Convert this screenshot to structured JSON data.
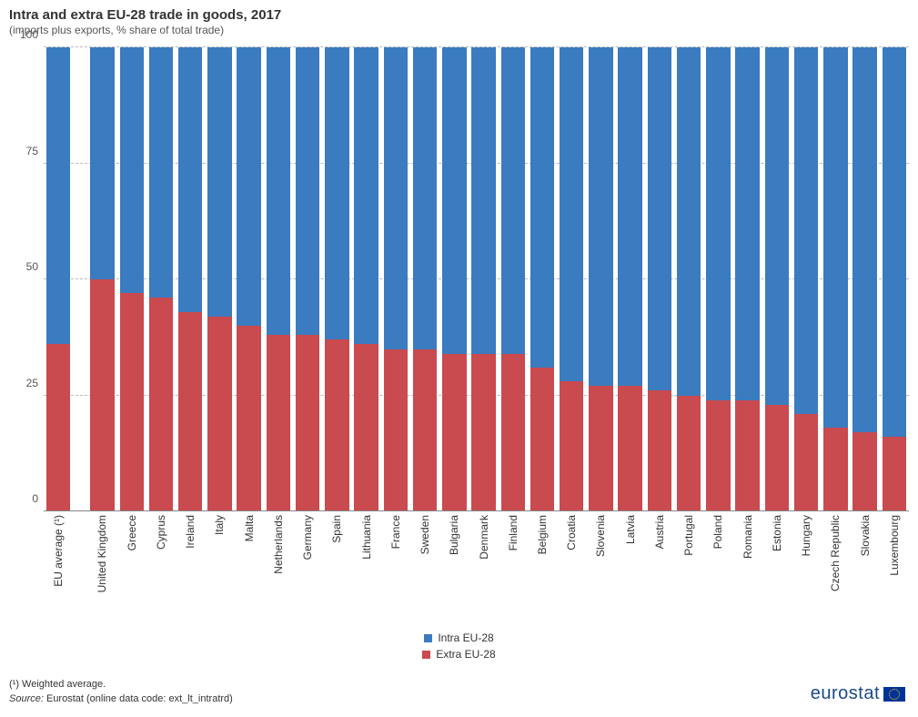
{
  "header": {
    "title": "Intra and extra EU-28 trade in goods, 2017",
    "subtitle": "(imports plus exports, % share of total trade)"
  },
  "chart": {
    "type": "stacked-bar",
    "ylim": [
      0,
      100
    ],
    "yticks": [
      0,
      25,
      50,
      75,
      100
    ],
    "ytick_labels": [
      "0",
      "25",
      "50",
      "75",
      "100"
    ],
    "grid_color": "#bbbbbb",
    "background_color": "#ffffff",
    "axis_color": "#888888",
    "label_fontsize": 12,
    "bar_width": 0.82,
    "series": [
      {
        "name": "Intra EU-28",
        "color": "#3b7bbf"
      },
      {
        "name": "Extra EU-28",
        "color": "#c94a4f"
      }
    ],
    "categories": [
      {
        "label": "EU average (¹)",
        "extra": 36,
        "intra": 64,
        "gap_after": true
      },
      {
        "label": "United Kingdom",
        "extra": 50,
        "intra": 50
      },
      {
        "label": "Greece",
        "extra": 47,
        "intra": 53
      },
      {
        "label": "Cyprus",
        "extra": 46,
        "intra": 54
      },
      {
        "label": "Ireland",
        "extra": 43,
        "intra": 57
      },
      {
        "label": "Italy",
        "extra": 42,
        "intra": 58
      },
      {
        "label": "Malta",
        "extra": 40,
        "intra": 60
      },
      {
        "label": "Netherlands",
        "extra": 38,
        "intra": 62
      },
      {
        "label": "Germany",
        "extra": 38,
        "intra": 62
      },
      {
        "label": "Spain",
        "extra": 37,
        "intra": 63
      },
      {
        "label": "Lithuania",
        "extra": 36,
        "intra": 64
      },
      {
        "label": "France",
        "extra": 35,
        "intra": 65
      },
      {
        "label": "Sweden",
        "extra": 35,
        "intra": 65
      },
      {
        "label": "Bulgaria",
        "extra": 34,
        "intra": 66
      },
      {
        "label": "Denmark",
        "extra": 34,
        "intra": 66
      },
      {
        "label": "Finland",
        "extra": 34,
        "intra": 66
      },
      {
        "label": "Belgium",
        "extra": 31,
        "intra": 69
      },
      {
        "label": "Croatia",
        "extra": 28,
        "intra": 72
      },
      {
        "label": "Slovenia",
        "extra": 27,
        "intra": 73
      },
      {
        "label": "Latvia",
        "extra": 27,
        "intra": 73
      },
      {
        "label": "Austria",
        "extra": 26,
        "intra": 74
      },
      {
        "label": "Portugal",
        "extra": 25,
        "intra": 75
      },
      {
        "label": "Poland",
        "extra": 24,
        "intra": 76
      },
      {
        "label": "Romania",
        "extra": 24,
        "intra": 76
      },
      {
        "label": "Estonia",
        "extra": 23,
        "intra": 77
      },
      {
        "label": "Hungary",
        "extra": 21,
        "intra": 79
      },
      {
        "label": "Czech Republic",
        "extra": 18,
        "intra": 82
      },
      {
        "label": "Slovakia",
        "extra": 17,
        "intra": 83
      },
      {
        "label": "Luxembourg",
        "extra": 16,
        "intra": 84
      }
    ]
  },
  "legend": {
    "intra": "Intra EU-28",
    "extra": "Extra EU-28"
  },
  "footer": {
    "note": "(¹) Weighted average.",
    "source_label": "Source:",
    "source_text": " Eurostat (online data code: ext_lt_intratrd)"
  },
  "logo": {
    "text": "eurostat",
    "flag_bg": "#003399",
    "flag_star": "#ffcc00",
    "text_color": "#1a4a8a"
  }
}
